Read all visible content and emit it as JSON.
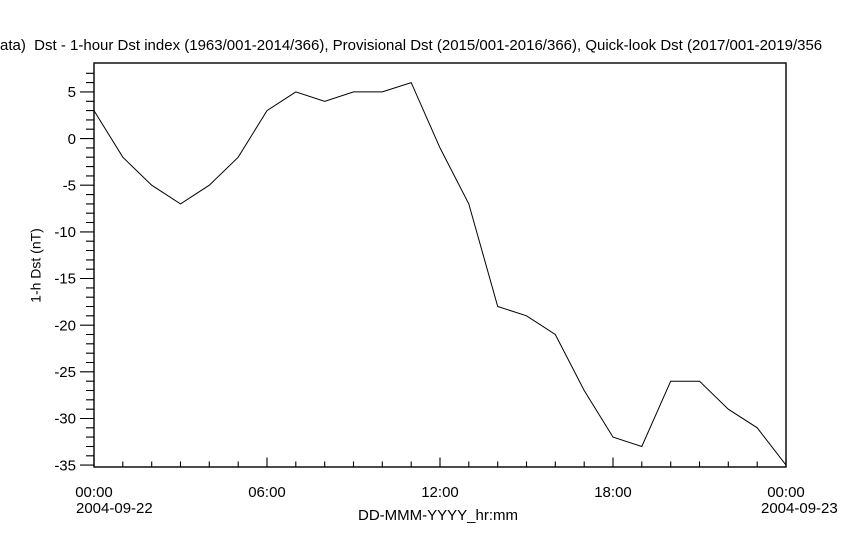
{
  "chart_data": {
    "type": "line",
    "title": "ata)  Dst - 1-hour Dst index (1963/001-2014/366), Provisional Dst (2015/001-2016/366), Quick-look Dst (2017/001-2019/356",
    "xlabel": "DD-MMM-YYYY_hr:mm",
    "ylabel": "1-h Dst (nT)",
    "start_date": "2004-09-22",
    "end_date": "2004-09-23",
    "x_hours": [
      0,
      1,
      2,
      3,
      4,
      5,
      6,
      7,
      8,
      9,
      10,
      11,
      12,
      13,
      14,
      15,
      16,
      17,
      18,
      19,
      20,
      21,
      22,
      23,
      24
    ],
    "values": [
      3,
      -2,
      -5,
      -7,
      -5,
      -2,
      3,
      5,
      4,
      5,
      5,
      6,
      -1,
      -7,
      -18,
      -19,
      -21,
      -27,
      -32,
      -33,
      -26,
      -26,
      -29,
      -31,
      -35
    ],
    "x_major_ticks": [
      {
        "hour": 0,
        "label": "00:00"
      },
      {
        "hour": 6,
        "label": "06:00"
      },
      {
        "hour": 12,
        "label": "12:00"
      },
      {
        "hour": 18,
        "label": "18:00"
      },
      {
        "hour": 24,
        "label": "00:00"
      }
    ],
    "y_major_ticks": [
      5,
      0,
      -5,
      -10,
      -15,
      -20,
      -25,
      -30,
      -35
    ],
    "y_minor_tick_step": 1,
    "x_minor_tick_step_hours": 1,
    "ylim": [
      -35.2,
      8.1
    ],
    "xlim_hours": [
      0,
      24
    ],
    "grid": false,
    "line_color": "#000000",
    "axis_color": "#000000",
    "background_color": "#ffffff"
  }
}
